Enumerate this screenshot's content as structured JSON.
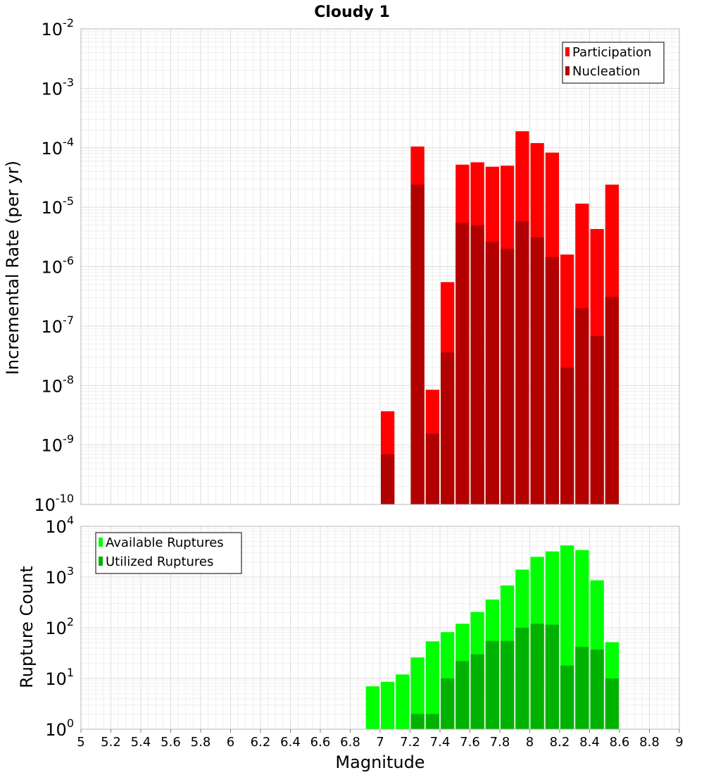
{
  "chart_data": [
    {
      "type": "bar",
      "title": "Cloudy 1",
      "xlabel": "",
      "ylabel": "Incremental Rate (per yr)",
      "y_scale": "log",
      "ylim_exponents": [
        -10,
        -2
      ],
      "y_tick_exponents": [
        -10,
        -9,
        -8,
        -7,
        -6,
        -5,
        -4,
        -3,
        -2
      ],
      "xlim": [
        5,
        9
      ],
      "grid": true,
      "legend_placement": "top-right",
      "series": [
        {
          "name": "Participation",
          "color": "#ff0000",
          "points": [
            {
              "x": 7.05,
              "y": 3.7e-09
            },
            {
              "x": 7.25,
              "y": 0.000105
            },
            {
              "x": 7.35,
              "y": 8.5e-09
            },
            {
              "x": 7.45,
              "y": 5.5e-07
            },
            {
              "x": 7.55,
              "y": 5.2e-05
            },
            {
              "x": 7.65,
              "y": 5.7e-05
            },
            {
              "x": 7.75,
              "y": 4.8e-05
            },
            {
              "x": 7.85,
              "y": 5e-05
            },
            {
              "x": 7.95,
              "y": 0.00019
            },
            {
              "x": 8.05,
              "y": 0.00012
            },
            {
              "x": 8.15,
              "y": 8.3e-05
            },
            {
              "x": 8.25,
              "y": 1.6e-06
            },
            {
              "x": 8.35,
              "y": 1.15e-05
            },
            {
              "x": 8.45,
              "y": 4.3e-06
            },
            {
              "x": 8.55,
              "y": 2.4e-05
            }
          ]
        },
        {
          "name": "Nucleation",
          "color": "#b20000",
          "points": [
            {
              "x": 7.05,
              "y": 7e-10
            },
            {
              "x": 7.25,
              "y": 2.4e-05
            },
            {
              "x": 7.35,
              "y": 1.55e-09
            },
            {
              "x": 7.45,
              "y": 3.6e-08
            },
            {
              "x": 7.55,
              "y": 5.5e-06
            },
            {
              "x": 7.65,
              "y": 5e-06
            },
            {
              "x": 7.75,
              "y": 2.6e-06
            },
            {
              "x": 7.85,
              "y": 2e-06
            },
            {
              "x": 7.95,
              "y": 5.8e-06
            },
            {
              "x": 8.05,
              "y": 3.1e-06
            },
            {
              "x": 8.15,
              "y": 1.45e-06
            },
            {
              "x": 8.25,
              "y": 2e-08
            },
            {
              "x": 8.35,
              "y": 2e-07
            },
            {
              "x": 8.45,
              "y": 6.8e-08
            },
            {
              "x": 8.55,
              "y": 3.1e-07
            }
          ]
        }
      ]
    },
    {
      "type": "bar",
      "title": "",
      "xlabel": "Magnitude",
      "ylabel": "Rupture Count",
      "y_scale": "log",
      "ylim_exponents": [
        0,
        4
      ],
      "y_tick_exponents": [
        0,
        1,
        2,
        3,
        4
      ],
      "xlim": [
        5,
        9
      ],
      "x_ticks": [
        "5",
        "5.2",
        "5.4",
        "5.6",
        "5.8",
        "6",
        "6.2",
        "6.4",
        "6.6",
        "6.8",
        "7",
        "7.2",
        "7.4",
        "7.6",
        "7.8",
        "8",
        "8.2",
        "8.4",
        "8.6",
        "8.8",
        "9"
      ],
      "grid": true,
      "legend_placement": "top-left",
      "series": [
        {
          "name": "Available Ruptures",
          "color": "#00ff00",
          "points": [
            {
              "x": 6.65,
              "y": 1
            },
            {
              "x": 6.75,
              "y": 1
            },
            {
              "x": 6.85,
              "y": 1
            },
            {
              "x": 6.95,
              "y": 7
            },
            {
              "x": 7.05,
              "y": 8.6
            },
            {
              "x": 7.15,
              "y": 12
            },
            {
              "x": 7.25,
              "y": 26
            },
            {
              "x": 7.35,
              "y": 54
            },
            {
              "x": 7.45,
              "y": 82
            },
            {
              "x": 7.55,
              "y": 120
            },
            {
              "x": 7.65,
              "y": 205
            },
            {
              "x": 7.75,
              "y": 360
            },
            {
              "x": 7.85,
              "y": 680
            },
            {
              "x": 7.95,
              "y": 1400
            },
            {
              "x": 8.05,
              "y": 2500
            },
            {
              "x": 8.15,
              "y": 3200
            },
            {
              "x": 8.25,
              "y": 4200
            },
            {
              "x": 8.35,
              "y": 3400
            },
            {
              "x": 8.45,
              "y": 860
            },
            {
              "x": 8.55,
              "y": 52
            }
          ]
        },
        {
          "name": "Utilized Ruptures",
          "color": "#00b200",
          "points": [
            {
              "x": 7.05,
              "y": 1
            },
            {
              "x": 7.25,
              "y": 2
            },
            {
              "x": 7.35,
              "y": 2
            },
            {
              "x": 7.45,
              "y": 10
            },
            {
              "x": 7.55,
              "y": 22
            },
            {
              "x": 7.65,
              "y": 30
            },
            {
              "x": 7.75,
              "y": 55
            },
            {
              "x": 7.85,
              "y": 55
            },
            {
              "x": 7.95,
              "y": 100
            },
            {
              "x": 8.05,
              "y": 120
            },
            {
              "x": 8.15,
              "y": 115
            },
            {
              "x": 8.25,
              "y": 18
            },
            {
              "x": 8.35,
              "y": 42
            },
            {
              "x": 8.45,
              "y": 37
            },
            {
              "x": 8.55,
              "y": 10
            }
          ]
        }
      ]
    }
  ]
}
